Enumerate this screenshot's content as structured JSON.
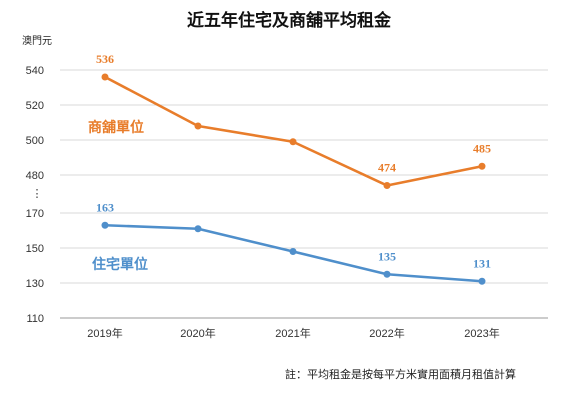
{
  "chart_data": {
    "type": "line",
    "title": "近五年住宅及商舖平均租金",
    "unit_label": "澳門元",
    "categories": [
      "2019年",
      "2020年",
      "2021年",
      "2022年",
      "2023年"
    ],
    "upper_axis": {
      "ticks": [
        "540",
        "520",
        "500",
        "480"
      ],
      "range": [
        470,
        545
      ]
    },
    "lower_axis": {
      "ticks": [
        "170",
        "150",
        "130",
        "110"
      ],
      "range": [
        110,
        175
      ]
    },
    "axis_break_symbol": "⋮",
    "grid": true,
    "series": [
      {
        "name": "商舖單位",
        "color": "#e87d2b",
        "panel": "upper",
        "values": [
          536,
          508,
          499,
          474,
          485
        ],
        "labels": [
          "536",
          "",
          "",
          "474",
          "485"
        ]
      },
      {
        "name": "住宅單位",
        "color": "#4f8fcb",
        "panel": "lower",
        "values": [
          163,
          161,
          148,
          135,
          131
        ],
        "labels": [
          "163",
          "",
          "",
          "135",
          "131"
        ]
      }
    ],
    "note": "註：平均租金是按每平方米實用面積月租值計算"
  }
}
